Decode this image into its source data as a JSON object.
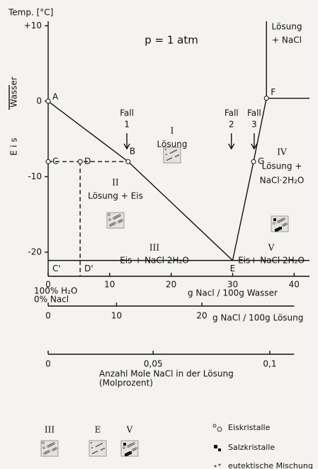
{
  "chart_data": {
    "type": "phase-diagram",
    "title": "p = 1 atm",
    "ylabel": "Temp. [°C]",
    "ylabel_side": [
      "Wasser",
      "Eis"
    ],
    "xlabel": "g Nacl / 100g Wasser",
    "xlim": [
      0,
      42.5
    ],
    "ylim": [
      -23.2,
      10.6
    ],
    "xticks": [
      0,
      10,
      20,
      30,
      40
    ],
    "yticks": [
      {
        "value": 10,
        "label": "+10"
      },
      0,
      -10,
      -20
    ],
    "points": [
      {
        "label": "A",
        "x": 0,
        "y": 0
      },
      {
        "label": "B",
        "x": 13,
        "y": -8
      },
      {
        "label": "C",
        "x": 0,
        "y": -8
      },
      {
        "label": "D",
        "x": 5.2,
        "y": -8
      },
      {
        "label": "C'",
        "x": 0,
        "y": -21.1
      },
      {
        "label": "D'",
        "x": 5.2,
        "y": -21.1
      },
      {
        "label": "E",
        "x": 30,
        "y": -21.1
      },
      {
        "label": "F",
        "x": 35.5,
        "y": 0.4
      },
      {
        "label": "G",
        "x": 33.4,
        "y": -8
      }
    ],
    "regions": [
      {
        "numeral": "I",
        "lines": [
          "Lösung"
        ]
      },
      {
        "numeral": "II",
        "lines": [
          "Lösung + Eis"
        ]
      },
      {
        "numeral": "III",
        "lines": [
          "Eis + NaCl·2H₂O"
        ]
      },
      {
        "numeral": "IV",
        "lines": [
          "Lösung +",
          "NaCl·2H₂O"
        ]
      },
      {
        "numeral": "V",
        "lines": [
          "Eis+ NaCl·2H₂O"
        ]
      },
      {
        "lines": [
          "Lösung",
          "+ NaCl"
        ]
      }
    ],
    "cases": [
      {
        "label": "Fall",
        "number": "1",
        "x": 12.8
      },
      {
        "label": "Fall",
        "number": "2",
        "x": 29.8
      },
      {
        "label": "Fall",
        "number": "3",
        "x": 33.5
      }
    ],
    "axis_note": [
      "100% H₂O",
      "0% Nacl"
    ],
    "axis2": {
      "label": "g NaCl / 100g Lösung",
      "ticks": [
        0,
        10,
        20
      ]
    },
    "axis3": {
      "label": "Anzahl Mole NaCl in der Lösung",
      "sublabel": "(Molprozent)",
      "ticks": [
        0,
        {
          "value": 0.05,
          "label": "0,05"
        },
        {
          "value": 0.1,
          "label": "0,1"
        }
      ]
    },
    "legend_regions": [
      "III",
      "E",
      "V"
    ],
    "legend_items": [
      "Eiskristalle",
      "Salzkristalle",
      "eutektische Mischung"
    ]
  }
}
